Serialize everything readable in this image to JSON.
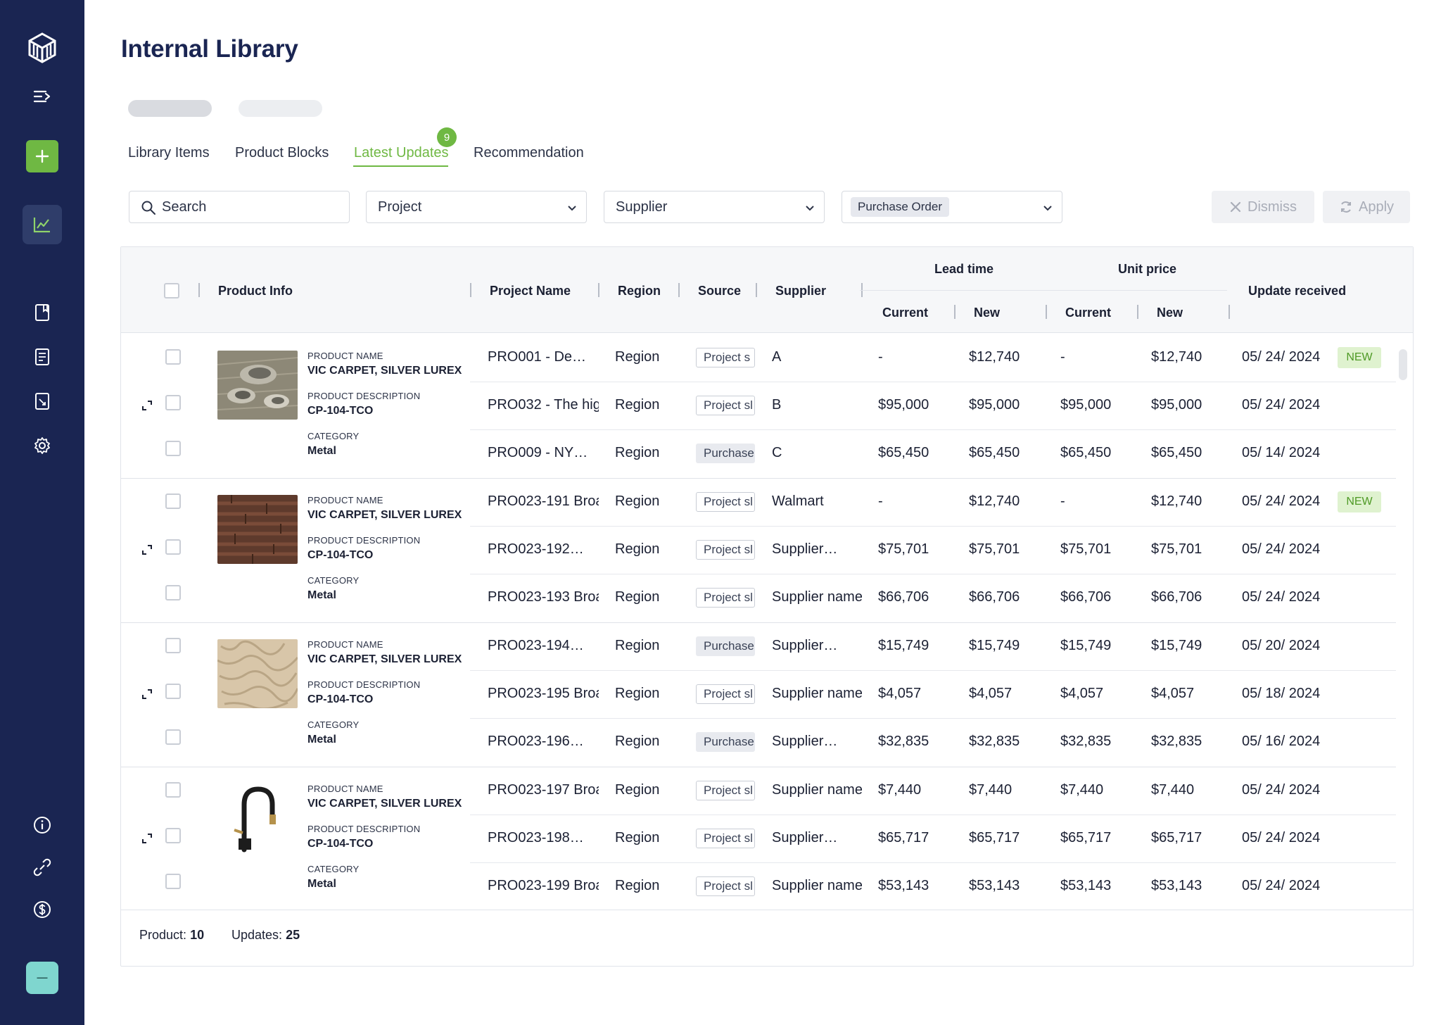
{
  "page": {
    "title": "Internal Library"
  },
  "tabs": [
    {
      "label": "Library Items"
    },
    {
      "label": "Product Blocks"
    },
    {
      "label": "Latest Updates",
      "badge": "9",
      "active": true
    },
    {
      "label": "Recommendation"
    }
  ],
  "filters": {
    "search_placeholder": "Search",
    "project": "Project",
    "supplier": "Supplier",
    "purchase_order": "Purchase Order"
  },
  "actions": {
    "dismiss": "Dismiss",
    "apply": "Apply"
  },
  "table": {
    "headers": {
      "product_info": "Product Info",
      "project_name": "Project Name",
      "region": "Region",
      "source": "Source",
      "supplier": "Supplier",
      "lead_time": "Lead time",
      "unit_price": "Unit price",
      "current": "Current",
      "new": "New",
      "update_received": "Update received"
    },
    "product_labels": {
      "name": "PRODUCT NAME",
      "description": "PRODUCT DESCRIPTION",
      "category": "CATEGORY"
    },
    "groups": [
      {
        "product_name": "VIC CARPET, SILVER LUREX",
        "product_description": "CP-104-TCO",
        "category": "Metal",
        "thumbnail": "metal-sculpture-image",
        "rows": [
          {
            "project": "PRO001 - De…",
            "region": "Region",
            "source": "Project s",
            "source_type": "outline",
            "supplier": "A",
            "lead_current": "-",
            "lead_new": "$12,740",
            "price_current": "-",
            "price_new": "$12,740",
            "date": "05/ 24/ 2024",
            "badge": "NEW"
          },
          {
            "project": "PRO032 - The higl",
            "region": "Region",
            "source": "Project sl",
            "source_type": "outline",
            "supplier": "B",
            "lead_current": "$95,000",
            "lead_new": "$95,000",
            "price_current": "$95,000",
            "price_new": "$95,000",
            "date": "05/ 24/ 2024",
            "badge": ""
          },
          {
            "project": "PRO009 - NY…",
            "region": "Region",
            "source": "Purchase",
            "source_type": "filled",
            "supplier": "C",
            "lead_current": "$65,450",
            "lead_new": "$65,450",
            "price_current": "$65,450",
            "price_new": "$65,450",
            "date": "05/ 14/ 2024",
            "badge": ""
          }
        ]
      },
      {
        "product_name": "VIC CARPET, SILVER LUREX",
        "product_description": "CP-104-TCO",
        "category": "Metal",
        "thumbnail": "wood-panel-image",
        "rows": [
          {
            "project": "PRO023-191 Broa",
            "region": "Region",
            "source": "Project sl",
            "source_type": "outline",
            "supplier": "Walmart",
            "lead_current": "-",
            "lead_new": "$12,740",
            "price_current": "-",
            "price_new": "$12,740",
            "date": "05/ 24/ 2024",
            "badge": "NEW"
          },
          {
            "project": "PRO023-192…",
            "region": "Region",
            "source": "Project sl",
            "source_type": "outline",
            "supplier": "Supplier…",
            "lead_current": "$75,701",
            "lead_new": "$75,701",
            "price_current": "$75,701",
            "price_new": "$75,701",
            "date": "05/ 24/ 2024",
            "badge": ""
          },
          {
            "project": "PRO023-193 Broa",
            "region": "Region",
            "source": "Project sl",
            "source_type": "outline",
            "supplier": "Supplier name",
            "lead_current": "$66,706",
            "lead_new": "$66,706",
            "price_current": "$66,706",
            "price_new": "$66,706",
            "date": "05/ 24/ 2024",
            "badge": ""
          }
        ]
      },
      {
        "product_name": "VIC CARPET, SILVER LUREX",
        "product_description": "CP-104-TCO",
        "category": "Metal",
        "thumbnail": "plaster-texture-image",
        "rows": [
          {
            "project": "PRO023-194…",
            "region": "Region",
            "source": "Purchase",
            "source_type": "filled",
            "supplier": "Supplier…",
            "lead_current": "$15,749",
            "lead_new": "$15,749",
            "price_current": "$15,749",
            "price_new": "$15,749",
            "date": "05/ 20/ 2024",
            "badge": ""
          },
          {
            "project": "PRO023-195 Broa",
            "region": "Region",
            "source": "Project sl",
            "source_type": "outline",
            "supplier": "Supplier name",
            "lead_current": "$4,057",
            "lead_new": "$4,057",
            "price_current": "$4,057",
            "price_new": "$4,057",
            "date": "05/ 18/ 2024",
            "badge": ""
          },
          {
            "project": "PRO023-196…",
            "region": "Region",
            "source": "Purchase",
            "source_type": "filled",
            "supplier": "Supplier…",
            "lead_current": "$32,835",
            "lead_new": "$32,835",
            "price_current": "$32,835",
            "price_new": "$32,835",
            "date": "05/ 16/ 2024",
            "badge": ""
          }
        ]
      },
      {
        "product_name": "VIC CARPET, SILVER LUREX",
        "product_description": "CP-104-TCO",
        "category": "Metal",
        "thumbnail": "faucet-image",
        "rows": [
          {
            "project": "PRO023-197 Broa",
            "region": "Region",
            "source": "Project sl",
            "source_type": "outline",
            "supplier": "Supplier name",
            "lead_current": "$7,440",
            "lead_new": "$7,440",
            "price_current": "$7,440",
            "price_new": "$7,440",
            "date": "05/ 24/ 2024",
            "badge": ""
          },
          {
            "project": "PRO023-198…",
            "region": "Region",
            "source": "Project sl",
            "source_type": "outline",
            "supplier": "Supplier…",
            "lead_current": "$65,717",
            "lead_new": "$65,717",
            "price_current": "$65,717",
            "price_new": "$65,717",
            "date": "05/ 24/ 2024",
            "badge": ""
          },
          {
            "project": "PRO023-199 Broa",
            "region": "Region",
            "source": "Project sl",
            "source_type": "outline",
            "supplier": "Supplier name",
            "lead_current": "$53,143",
            "lead_new": "$53,143",
            "price_current": "$53,143",
            "price_new": "$53,143",
            "date": "05/ 24/ 2024",
            "badge": ""
          }
        ]
      }
    ]
  },
  "footer": {
    "product_label": "Product:",
    "product_count": "10",
    "updates_label": "Updates:",
    "updates_count": "25"
  },
  "sidebar": {
    "icons": [
      "logo-icon",
      "menu-collapse-icon",
      "plus-icon",
      "chart-icon",
      "book-icon",
      "document-list-icon",
      "document-export-icon",
      "settings-icon",
      "info-icon",
      "integration-icon",
      "billing-icon",
      "workspace-avatar"
    ]
  },
  "colors": {
    "sidebar_bg": "#1a2552",
    "accent_green": "#6fb843",
    "title_navy": "#1a2552",
    "new_badge_bg": "#dff2cf"
  }
}
